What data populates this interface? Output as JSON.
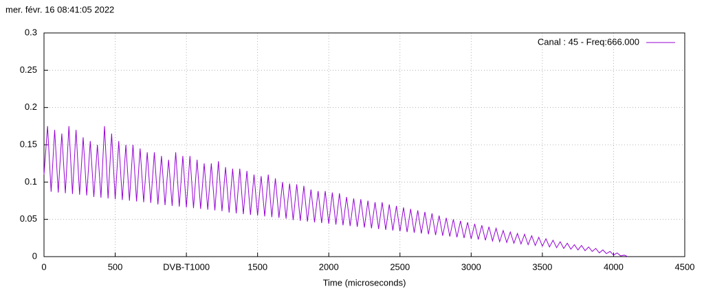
{
  "chart_data": {
    "type": "line",
    "timestamp": "mer. févr. 16 08:41:05 2022",
    "xlabel": "Time (microseconds)",
    "xlim": [
      0,
      4500
    ],
    "ylim": [
      0,
      0.3
    ],
    "xticks": [
      0,
      500,
      {
        "value": 1000,
        "label": "DVB-T1000"
      },
      1500,
      2000,
      2500,
      3000,
      3500,
      4000,
      4500
    ],
    "yticks": [
      0,
      0.05,
      0.1,
      0.15,
      0.2,
      0.25,
      0.3
    ],
    "grid": true,
    "legend": "top-right",
    "x": [
      0,
      25,
      50,
      75,
      100,
      125,
      150,
      175,
      200,
      225,
      250,
      275,
      300,
      325,
      350,
      375,
      400,
      425,
      450,
      475,
      500,
      525,
      550,
      575,
      600,
      625,
      650,
      675,
      700,
      725,
      750,
      775,
      800,
      825,
      850,
      875,
      900,
      925,
      950,
      975,
      1000,
      1025,
      1050,
      1075,
      1100,
      1125,
      1150,
      1175,
      1200,
      1225,
      1250,
      1275,
      1300,
      1325,
      1350,
      1375,
      1400,
      1425,
      1450,
      1475,
      1500,
      1525,
      1550,
      1575,
      1600,
      1625,
      1650,
      1675,
      1700,
      1725,
      1750,
      1775,
      1800,
      1825,
      1850,
      1875,
      1900,
      1925,
      1950,
      1975,
      2000,
      2025,
      2050,
      2075,
      2100,
      2125,
      2150,
      2175,
      2200,
      2225,
      2250,
      2275,
      2300,
      2325,
      2350,
      2375,
      2400,
      2425,
      2450,
      2475,
      2500,
      2525,
      2550,
      2575,
      2600,
      2625,
      2650,
      2675,
      2700,
      2725,
      2750,
      2775,
      2800,
      2825,
      2850,
      2875,
      2900,
      2925,
      2950,
      2975,
      3000,
      3025,
      3050,
      3075,
      3100,
      3125,
      3150,
      3175,
      3200,
      3225,
      3250,
      3275,
      3300,
      3325,
      3350,
      3375,
      3400,
      3425,
      3450,
      3475,
      3500,
      3525,
      3550,
      3575,
      3600,
      3625,
      3650,
      3675,
      3700,
      3725,
      3750,
      3775,
      3800,
      3825,
      3850,
      3875,
      3900,
      3925,
      3950,
      3975,
      4000,
      4025,
      4050,
      4075,
      4100
    ],
    "series": [
      {
        "name": "Canal : 45 - Freq:666.000",
        "color": "#9400d3",
        "values": [
          0.11,
          0.175,
          0.087,
          0.17,
          0.086,
          0.165,
          0.085,
          0.175,
          0.084,
          0.17,
          0.083,
          0.16,
          0.082,
          0.155,
          0.08,
          0.15,
          0.079,
          0.175,
          0.078,
          0.165,
          0.077,
          0.155,
          0.076,
          0.15,
          0.075,
          0.15,
          0.074,
          0.145,
          0.073,
          0.14,
          0.072,
          0.14,
          0.07,
          0.135,
          0.069,
          0.13,
          0.068,
          0.14,
          0.067,
          0.135,
          0.066,
          0.135,
          0.065,
          0.13,
          0.064,
          0.125,
          0.063,
          0.125,
          0.062,
          0.128,
          0.061,
          0.12,
          0.059,
          0.118,
          0.058,
          0.118,
          0.057,
          0.115,
          0.056,
          0.11,
          0.055,
          0.108,
          0.054,
          0.11,
          0.053,
          0.105,
          0.052,
          0.1,
          0.051,
          0.098,
          0.049,
          0.097,
          0.048,
          0.095,
          0.047,
          0.09,
          0.046,
          0.088,
          0.045,
          0.088,
          0.044,
          0.086,
          0.043,
          0.085,
          0.042,
          0.08,
          0.041,
          0.078,
          0.04,
          0.077,
          0.039,
          0.075,
          0.038,
          0.073,
          0.037,
          0.073,
          0.036,
          0.07,
          0.035,
          0.068,
          0.034,
          0.066,
          0.033,
          0.064,
          0.032,
          0.062,
          0.031,
          0.06,
          0.03,
          0.058,
          0.029,
          0.055,
          0.028,
          0.052,
          0.027,
          0.05,
          0.026,
          0.048,
          0.025,
          0.046,
          0.024,
          0.044,
          0.023,
          0.042,
          0.022,
          0.04,
          0.021,
          0.038,
          0.02,
          0.035,
          0.019,
          0.033,
          0.018,
          0.031,
          0.017,
          0.03,
          0.016,
          0.028,
          0.015,
          0.026,
          0.014,
          0.024,
          0.013,
          0.022,
          0.012,
          0.02,
          0.011,
          0.018,
          0.01,
          0.016,
          0.009,
          0.015,
          0.008,
          0.013,
          0.007,
          0.011,
          0.005,
          0.009,
          0.004,
          0.007,
          0.002,
          0.005,
          0.001,
          0.002,
          0
        ]
      }
    ]
  }
}
